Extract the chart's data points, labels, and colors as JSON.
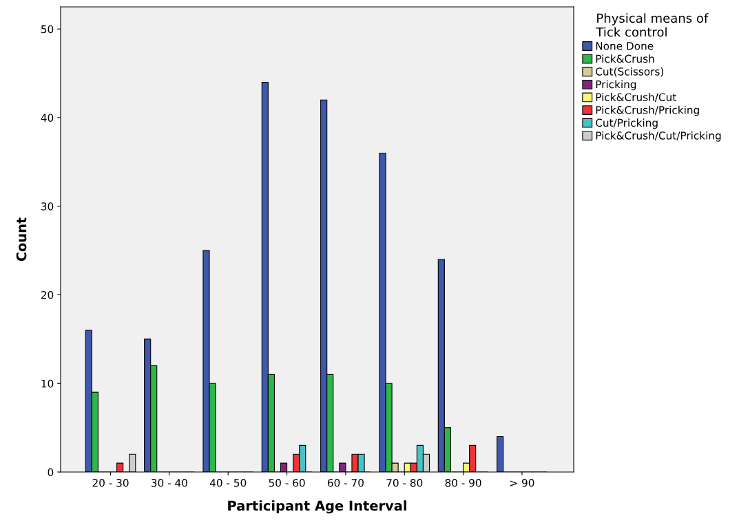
{
  "chart_data": {
    "type": "bar",
    "xlabel": "Participant Age Interval",
    "ylabel": "Count",
    "legend_title": "Physical means of\nTick control",
    "legend": "right",
    "categories": [
      "20 - 30",
      "30 - 40",
      "40 - 50",
      "50 - 60",
      "60 - 70",
      "70 - 80",
      "80 - 90",
      "> 90"
    ],
    "ylim": [
      0,
      52.5
    ],
    "yticks": [
      0,
      10,
      20,
      30,
      40,
      50
    ],
    "grid": false,
    "series": [
      {
        "name": "None Done",
        "color": "#3e58ac",
        "values": [
          16,
          15,
          25,
          44,
          42,
          36,
          24,
          4
        ]
      },
      {
        "name": "Pick&Crush",
        "color": "#2eb848",
        "values": [
          9,
          12,
          10,
          11,
          11,
          10,
          5,
          0
        ]
      },
      {
        "name": "Cut(Scissors)",
        "color": "#d3ce97",
        "values": [
          0,
          0,
          0,
          0,
          0,
          1,
          0,
          0
        ]
      },
      {
        "name": "Pricking",
        "color": "#7c287d",
        "values": [
          0,
          0,
          0,
          1,
          1,
          0,
          0,
          0
        ]
      },
      {
        "name": "Pick&Crush/Cut",
        "color": "#fbf873",
        "values": [
          0,
          0,
          0,
          0,
          0,
          1,
          1,
          0
        ]
      },
      {
        "name": "Pick&Crush/Pricking",
        "color": "#ef3338",
        "values": [
          1,
          0,
          0,
          2,
          2,
          1,
          3,
          0
        ]
      },
      {
        "name": "Cut/Pricking",
        "color": "#48c2c5",
        "values": [
          0,
          0,
          0,
          3,
          2,
          3,
          0,
          0
        ]
      },
      {
        "name": "Pick&Crush/Cut/Pricking",
        "color": "#cccccc",
        "values": [
          2,
          0,
          0,
          0,
          0,
          2,
          0,
          0
        ]
      }
    ]
  }
}
